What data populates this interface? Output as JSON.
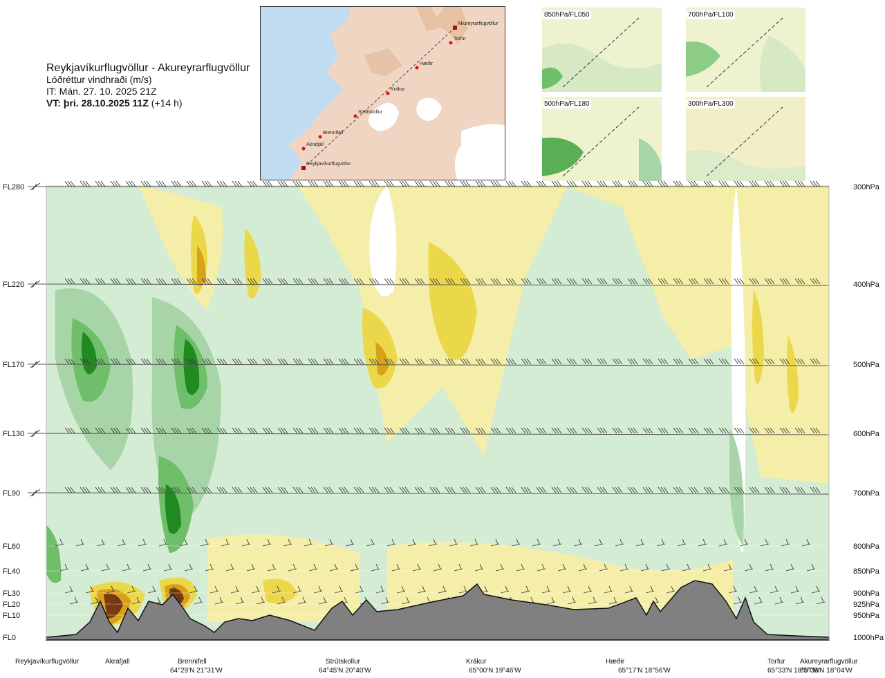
{
  "header": {
    "title": "Reykjavíkurflugvöllur - Akureyrarflugvöllur",
    "subtitle": "Lóðréttur vindhraði (m/s)",
    "issue_time": "IT: Mán. 27. 10. 2025 21Z",
    "valid_time_bold": "VT: þri. 28.10.2025 11Z",
    "valid_time_offset": " (+14 h)"
  },
  "map": {
    "route_points": [
      "Akureyrarflugvöllur",
      "Torfur",
      "Hæðir",
      "Krákur",
      "Strútskollur",
      "Brennifell",
      "Akrafjall",
      "Reykjavíkurflugvöllur"
    ]
  },
  "panels": [
    {
      "label": "850hPa/FL050"
    },
    {
      "label": "700hPa/FL100"
    },
    {
      "label": "500hPa/FL180"
    },
    {
      "label": "300hPa/FL300"
    }
  ],
  "chart_data": {
    "type": "heatmap",
    "title": "Lóðréttur vindhraði (m/s)",
    "x_locations": [
      {
        "name": "Reykjavíkurflugvöllur",
        "coord": "",
        "pos": 0.0
      },
      {
        "name": "Akrafjall",
        "coord": "",
        "pos": 0.07
      },
      {
        "name": "Brennifell",
        "coord": "64°29'N 21°31'W",
        "pos": 0.18
      },
      {
        "name": "Strútskollur",
        "coord": "64°45'N 20°40'W",
        "pos": 0.37
      },
      {
        "name": "Krákur",
        "coord": "65°00'N 19°46'W",
        "pos": 0.54
      },
      {
        "name": "Hæðir",
        "coord": "65°17'N 18°56'W",
        "pos": 0.72
      },
      {
        "name": "Torfur",
        "coord": "65°33'N 18°07'W",
        "pos": 0.93
      },
      {
        "name": "Akureyrarflugvöllur",
        "coord": "65°39'N 18°04'W",
        "pos": 1.0
      }
    ],
    "y_levels": [
      {
        "fl": "FL280",
        "hpa": "300hPa",
        "p": 300
      },
      {
        "fl": "FL220",
        "hpa": "400hPa",
        "p": 400
      },
      {
        "fl": "FL170",
        "hpa": "500hPa",
        "p": 500
      },
      {
        "fl": "FL130",
        "hpa": "600hPa",
        "p": 600
      },
      {
        "fl": "FL90",
        "hpa": "700hPa",
        "p": 700
      },
      {
        "fl": "FL60",
        "hpa": "800hPa",
        "p": 800
      },
      {
        "fl": "FL40",
        "hpa": "850hPa",
        "p": 850
      },
      {
        "fl": "FL30",
        "hpa": "900hPa",
        "p": 900
      },
      {
        "fl": "FL20",
        "hpa": "925hPa",
        "p": 925
      },
      {
        "fl": "FL10",
        "hpa": "950hPa",
        "p": 950
      },
      {
        "fl": "FL0",
        "hpa": "1000hPa",
        "p": 1000
      }
    ],
    "wind_barb_levels": [
      "FL280",
      "FL220",
      "FL170",
      "FL130",
      "FL90"
    ],
    "colors": {
      "strong_down": "#1f8a1f",
      "down": "#6fbf6a",
      "weak_down": "#a8d5a8",
      "slight_down": "#d3ecd3",
      "neutral": "#ffffff",
      "slight_up": "#f5eea9",
      "weak_up": "#ebd84a",
      "up": "#d9a01a",
      "strong_up": "#7a3a10",
      "terrain": "#808080"
    }
  }
}
